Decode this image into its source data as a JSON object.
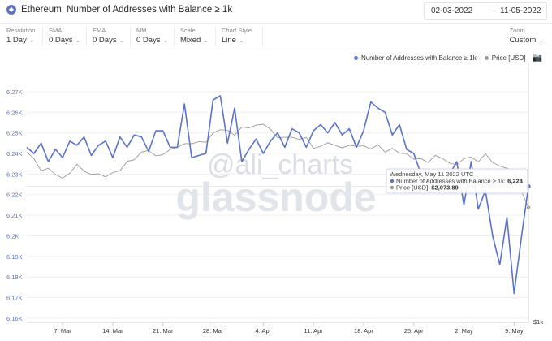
{
  "header": {
    "title": "Ethereum: Number of Addresses with Balance ≥ 1k",
    "date_from": "02-03-2022",
    "date_to": "11-05-2022",
    "date_arrow": "→"
  },
  "controls": [
    {
      "label": "Resolution",
      "value": "1 Day"
    },
    {
      "label": "SMA",
      "value": "0 Days"
    },
    {
      "label": "EMA",
      "value": "0 Days"
    },
    {
      "label": "MM",
      "value": "0 Days"
    },
    {
      "label": "Scale",
      "value": "Mixed"
    },
    {
      "label": "Chart Style",
      "value": "Line"
    }
  ],
  "zoom": {
    "label": "Zoom",
    "value": "Custom"
  },
  "legend": {
    "addresses": "Number of Addresses with Balance ≥ 1k",
    "price": "Price [USD]"
  },
  "watermarks": {
    "handle": "@ali_charts",
    "brand": "glassnode"
  },
  "tooltip": {
    "date": "Wednesday, May 11 2022 UTC",
    "addresses_label": "Number of Addresses with Balance ≥ 1k:",
    "addresses_value": "6,224",
    "price_label": "Price [USD]:",
    "price_value": "$2,073.89"
  },
  "colors": {
    "addresses": "#5b73cc",
    "price": "#9a9a9a"
  },
  "chart_data": {
    "type": "line",
    "x": [
      "2022-03-02",
      "2022-03-03",
      "2022-03-04",
      "2022-03-05",
      "2022-03-06",
      "2022-03-07",
      "2022-03-08",
      "2022-03-09",
      "2022-03-10",
      "2022-03-11",
      "2022-03-12",
      "2022-03-13",
      "2022-03-14",
      "2022-03-15",
      "2022-03-16",
      "2022-03-17",
      "2022-03-18",
      "2022-03-19",
      "2022-03-20",
      "2022-03-21",
      "2022-03-22",
      "2022-03-23",
      "2022-03-24",
      "2022-03-25",
      "2022-03-26",
      "2022-03-27",
      "2022-03-28",
      "2022-03-29",
      "2022-03-30",
      "2022-03-31",
      "2022-04-01",
      "2022-04-02",
      "2022-04-03",
      "2022-04-04",
      "2022-04-05",
      "2022-04-06",
      "2022-04-07",
      "2022-04-08",
      "2022-04-09",
      "2022-04-10",
      "2022-04-11",
      "2022-04-12",
      "2022-04-13",
      "2022-04-14",
      "2022-04-15",
      "2022-04-16",
      "2022-04-17",
      "2022-04-18",
      "2022-04-19",
      "2022-04-20",
      "2022-04-21",
      "2022-04-22",
      "2022-04-23",
      "2022-04-24",
      "2022-04-25",
      "2022-04-26",
      "2022-04-27",
      "2022-04-28",
      "2022-04-29",
      "2022-04-30",
      "2022-05-01",
      "2022-05-02",
      "2022-05-03",
      "2022-05-04",
      "2022-05-05",
      "2022-05-06",
      "2022-05-07",
      "2022-05-08",
      "2022-05-09",
      "2022-05-10",
      "2022-05-11"
    ],
    "series": [
      {
        "name": "Number of Addresses with Balance ≥ 1k",
        "axis": "left",
        "values": [
          6243,
          6240,
          6245,
          6236,
          6242,
          6238,
          6246,
          6244,
          6248,
          6239,
          6244,
          6246,
          6238,
          6248,
          6243,
          6249,
          6248,
          6241,
          6251,
          6251,
          6243,
          6243,
          6264,
          6238,
          6239,
          6240,
          6266,
          6268,
          6245,
          6262,
          6236,
          6242,
          6247,
          6240,
          6246,
          6250,
          6243,
          6252,
          6250,
          6243,
          6251,
          6254,
          6250,
          6255,
          6249,
          6252,
          6243,
          6251,
          6265,
          6262,
          6260,
          6249,
          6254,
          6242,
          6240,
          6230,
          6225,
          6226,
          6223,
          6230,
          6236,
          6215,
          6236,
          6213,
          6222,
          6200,
          6186,
          6209,
          6172,
          6199,
          6224
        ]
      },
      {
        "name": "Price [USD]",
        "axis": "right",
        "values": [
          2950,
          2830,
          2620,
          2660,
          2560,
          2500,
          2580,
          2730,
          2610,
          2560,
          2570,
          2520,
          2590,
          2620,
          2780,
          2810,
          2950,
          2980,
          2880,
          2900,
          3000,
          3040,
          3110,
          3110,
          3150,
          3140,
          3330,
          3400,
          3390,
          3280,
          3460,
          3440,
          3500,
          3520,
          3410,
          3230,
          3240,
          3240,
          3200,
          3240,
          3020,
          3060,
          3130,
          3080,
          3030,
          3080,
          3060,
          3070,
          3010,
          3090,
          2950,
          3020,
          2930,
          2920,
          2820,
          2830,
          2760,
          2890,
          2830,
          2750,
          2720,
          2830,
          2860,
          2770,
          2920,
          2760,
          2700,
          2660,
          2600,
          2300,
          2074
        ]
      }
    ],
    "y_left": {
      "ticks": [
        6.16,
        6.17,
        6.18,
        6.19,
        6.2,
        6.21,
        6.22,
        6.23,
        6.24,
        6.25,
        6.26,
        6.27
      ],
      "tick_labels": [
        "6.16K",
        "6.17K",
        "6.18K",
        "6.19K",
        "6.2K",
        "6.21K",
        "6.22K",
        "6.23K",
        "6.24K",
        "6.25K",
        "6.26K",
        "6.27K"
      ],
      "ylim": [
        6158,
        6281
      ]
    },
    "y_right": {
      "tick_labels": [
        "$1k"
      ],
      "scale": "log",
      "ylim": [
        1000,
        5000
      ]
    },
    "x_ticks": [
      {
        "date": "2022-03-07",
        "label": "7. Mar"
      },
      {
        "date": "2022-03-14",
        "label": "14. Mar"
      },
      {
        "date": "2022-03-21",
        "label": "21. Mar"
      },
      {
        "date": "2022-03-28",
        "label": "28. Mar"
      },
      {
        "date": "2022-04-04",
        "label": "4. Apr"
      },
      {
        "date": "2022-04-11",
        "label": "11. Apr"
      },
      {
        "date": "2022-04-18",
        "label": "18. Apr"
      },
      {
        "date": "2022-04-25",
        "label": "25. Apr"
      },
      {
        "date": "2022-05-02",
        "label": "2. May"
      },
      {
        "date": "2022-05-09",
        "label": "9. May"
      }
    ],
    "grid": true,
    "legend_position": "top-right"
  }
}
